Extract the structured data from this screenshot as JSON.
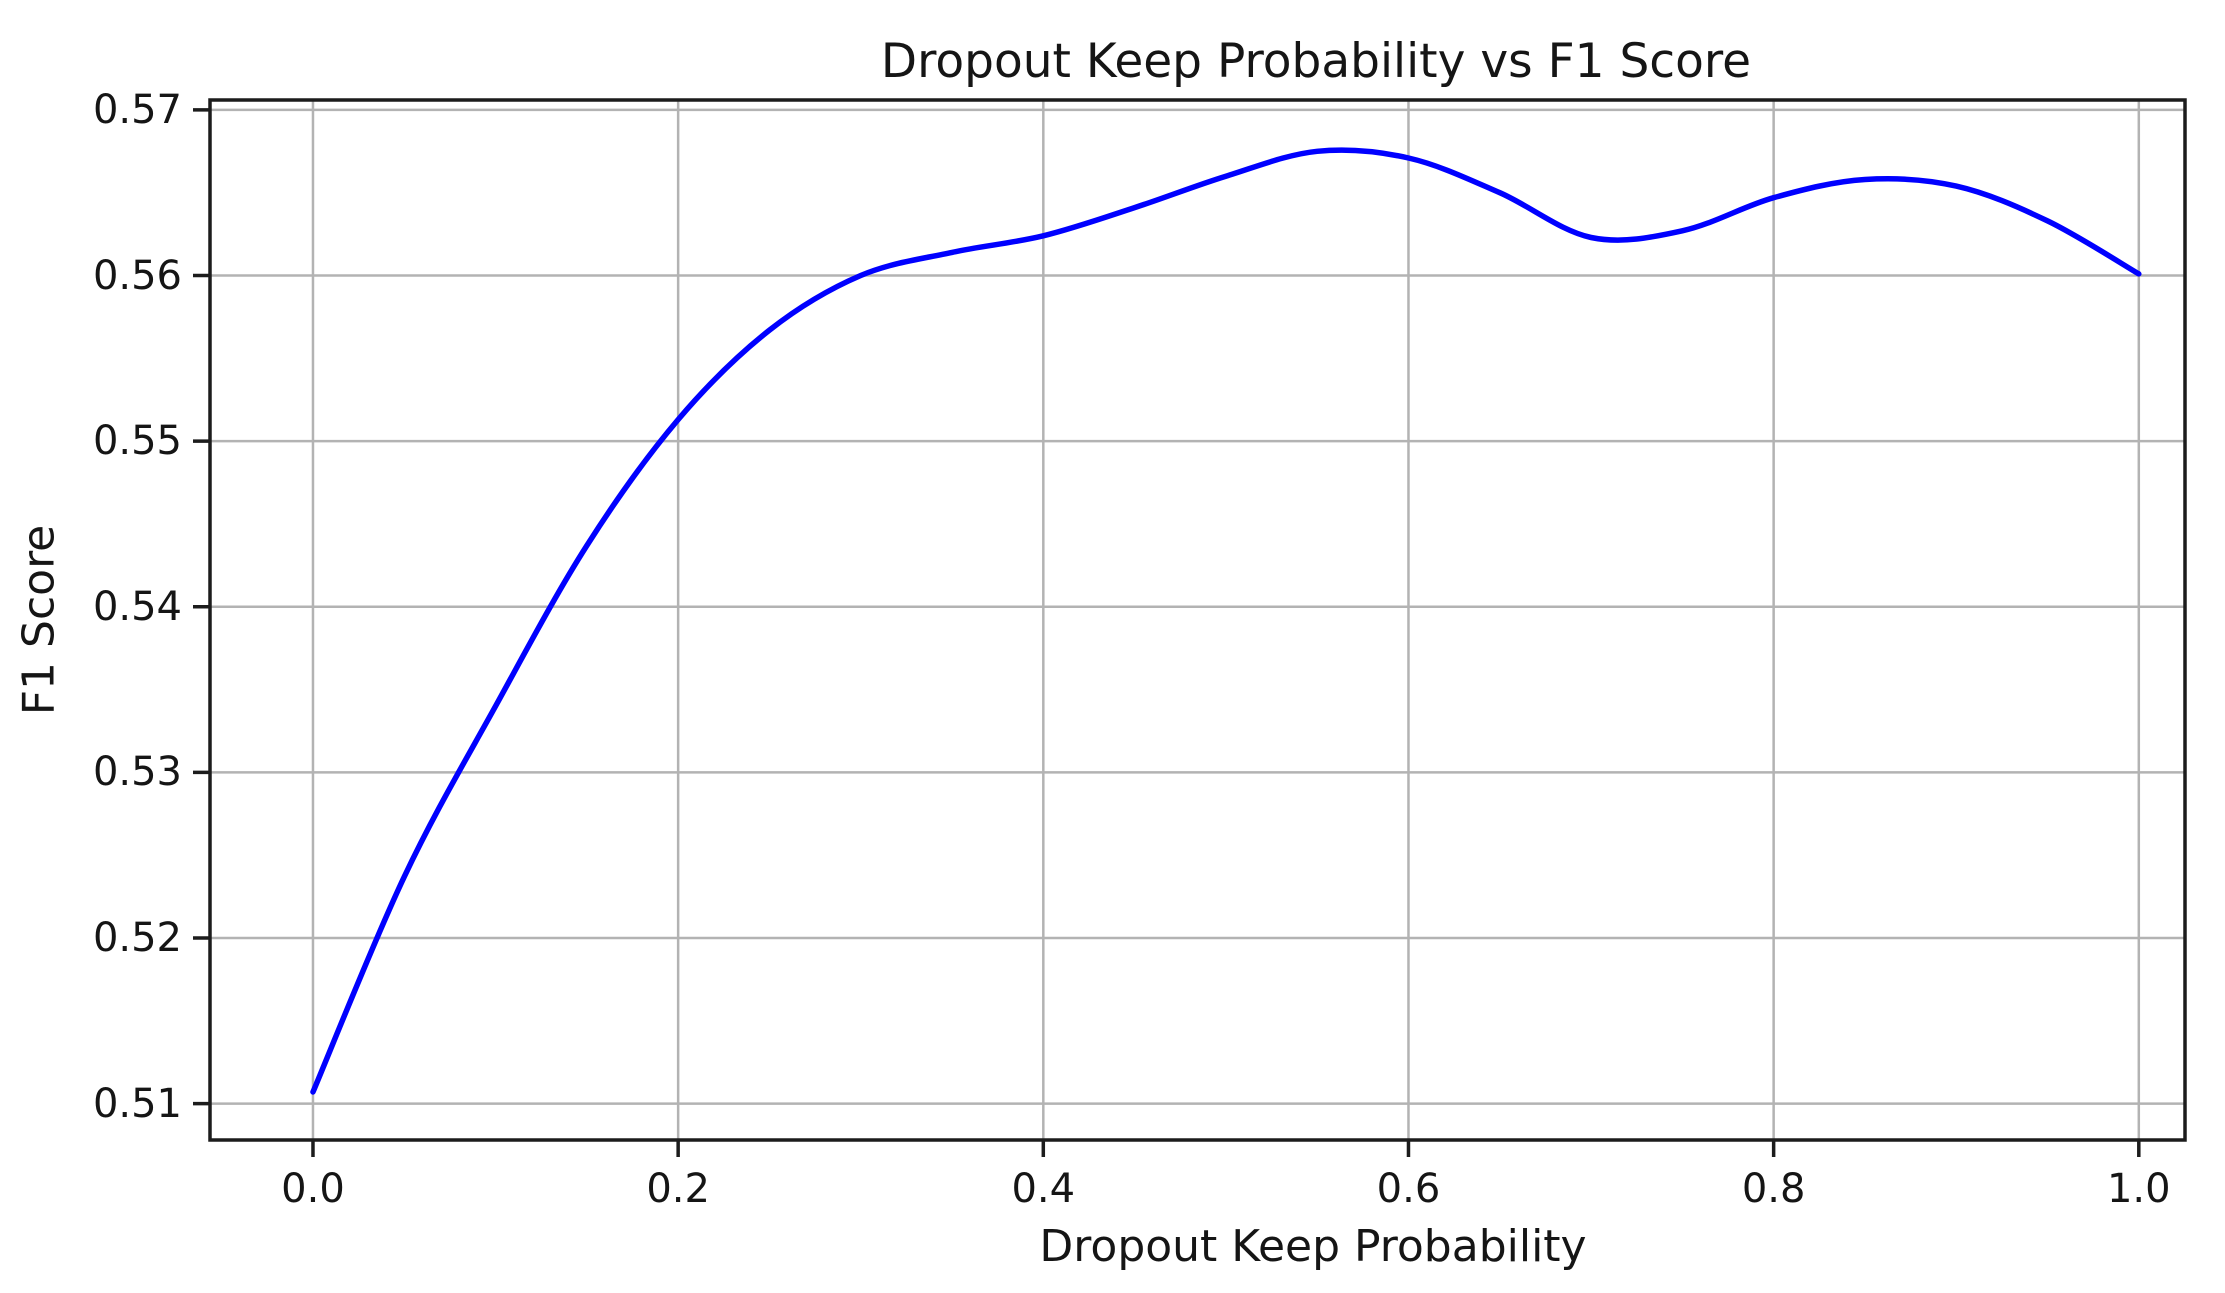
{
  "chart_data": {
    "type": "line",
    "title": "Dropout Keep Probability vs F1 Score",
    "xlabel": "Dropout Keep Probability",
    "ylabel": "F1 Score",
    "x_tick_labels": [
      "0.0",
      "0.2",
      "0.4",
      "0.6",
      "0.8",
      "1.0"
    ],
    "y_tick_labels": [
      "0.57",
      "0.56",
      "0.55",
      "0.54",
      "0.53",
      "0.52",
      "0.51"
    ],
    "xlim": [
      -0.0564,
      1.0253
    ],
    "ylim": [
      0.5078,
      0.5706
    ],
    "grid": true,
    "legend": "none",
    "series": [
      {
        "name": "F1 Score",
        "x": [
          0.0,
          0.05,
          0.1,
          0.15,
          0.2,
          0.25,
          0.3,
          0.35,
          0.4,
          0.45,
          0.5,
          0.55,
          0.6,
          0.65,
          0.7,
          0.75,
          0.8,
          0.85,
          0.9,
          0.95,
          1.0
        ],
        "y": [
          0.5107,
          0.5237,
          0.534,
          0.5437,
          0.5513,
          0.5567,
          0.56,
          0.5614,
          0.5624,
          0.5641,
          0.566,
          0.5675,
          0.5671,
          0.565,
          0.5623,
          0.5627,
          0.5647,
          0.5658,
          0.5654,
          0.5633,
          0.5601
        ]
      }
    ],
    "annotations": {
      "start_point": [
        0.0,
        0.5107
      ],
      "global_max": [
        0.56,
        0.5677
      ],
      "local_min": [
        0.705,
        0.5621
      ],
      "second_peak": [
        0.855,
        0.5659
      ],
      "end_point": [
        1.0,
        0.5601
      ]
    },
    "colors": {
      "line": "#0000ff",
      "grid": "#b3b3b3",
      "axis_border": "#1c1c1c",
      "text": "#151515",
      "background": "#ffffff"
    }
  }
}
